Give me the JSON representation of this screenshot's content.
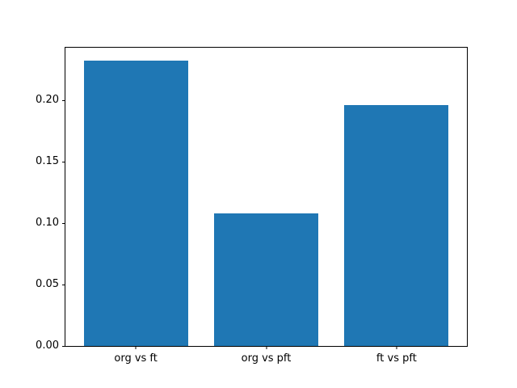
{
  "figure": {
    "background_color": "#ffffff",
    "spine_color": "#000000",
    "text_color": "#000000"
  },
  "chart_data": {
    "type": "bar",
    "title": "",
    "xlabel": "",
    "ylabel": "",
    "categories": [
      "org vs ft",
      "org vs pft",
      "ft vs pft"
    ],
    "values": [
      0.232,
      0.108,
      0.196
    ],
    "bar_color": "#1f77b4",
    "bar_width_fraction": 0.8,
    "ylim": [
      0,
      0.2428
    ],
    "yticks": [
      0.0,
      0.05,
      0.1,
      0.15,
      0.2
    ],
    "ytick_labels": [
      "0.00",
      "0.05",
      "0.10",
      "0.15",
      "0.20"
    ],
    "grid": false,
    "legend": null
  }
}
